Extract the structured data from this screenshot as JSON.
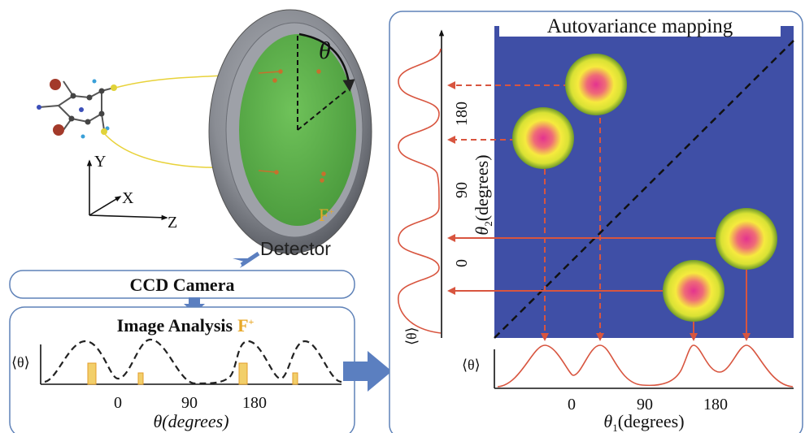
{
  "colors": {
    "panel_border": "#5f82b8",
    "heatmap_bg": "#3f4fa6",
    "arrow_red": "#d8553f",
    "curve_red": "#d8553f",
    "detector_green": "#5ab04a",
    "detector_rim": "#8c8f96",
    "accent_yellow": "#f2b233",
    "flow_arrow": "#5b7fc0"
  },
  "icons": {
    "molecule": "molecule-icon",
    "axes": "axes-icon",
    "detector": "detector-icon",
    "flow": "blue-arrow-icon"
  },
  "left": {
    "axes_labels": {
      "y": "Y",
      "x": "X",
      "z": "Z"
    },
    "theta_symbol": "θ",
    "detector_sublabel": "F",
    "detector_sublabel_sup": "+",
    "detector_label": "Detector",
    "ccd_label": "CCD Camera",
    "image_analysis": {
      "title": "Image Analysis",
      "title_suffix": "F",
      "title_suffix_sup": "+",
      "ylabel": "⟨θ⟩",
      "ticks": [
        "0",
        "90",
        "180"
      ],
      "xlabel": "θ(degrees)"
    }
  },
  "right": {
    "title": "Autovariance mapping",
    "ylabel_theta": "θ",
    "ylabel_sub": "2",
    "ylabel_units": "(degrees)",
    "yticks": [
      "0",
      "90",
      "180"
    ],
    "top_ylabel": "⟨θ⟩",
    "xticks": [
      "0",
      "90",
      "180"
    ],
    "xlabel_theta": "θ",
    "xlabel_sub": "1",
    "xlabel_units": "(degrees)"
  }
}
